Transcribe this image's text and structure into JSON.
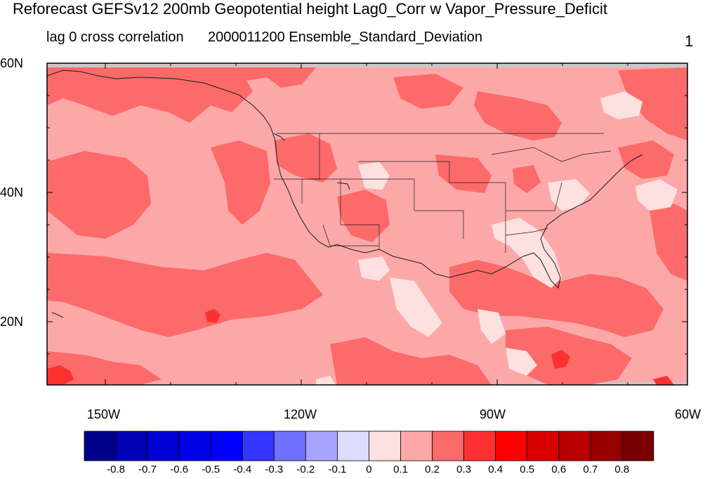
{
  "header": {
    "title": "Reforecast GEFSv12 200mb Geopotential height Lag0_Corr w Vapor_Pressure_Deficit",
    "subtitle_left": "lag 0 cross correlation",
    "subtitle_right": "2000011200 Ensemble_Standard_Deviation",
    "corner": "1"
  },
  "map": {
    "lat_labels": [
      "60N",
      "40N",
      "20N"
    ],
    "lon_labels": [
      "150W",
      "120W",
      "90W",
      "60W"
    ],
    "colors": {
      "base_fill": "#fda8a8",
      "mid_fill": "#fd6a6a",
      "high_fill": "#fd3030",
      "low_fill": "#fde0e0",
      "missing": "#c8c8c8",
      "coast": "#1a1a1a"
    }
  },
  "colorbar": {
    "colors": [
      "#00008a",
      "#0000b4",
      "#0000d4",
      "#0000e8",
      "#0000ff",
      "#3535ff",
      "#7070ff",
      "#a5a5ff",
      "#dcdcff",
      "#fde0e0",
      "#fda8a8",
      "#fd6a6a",
      "#fd3030",
      "#fd0000",
      "#d80000",
      "#b80000",
      "#980000",
      "#780000"
    ],
    "labels": [
      "-0.8",
      "-0.7",
      "-0.6",
      "-0.5",
      "-0.4",
      "-0.3",
      "-0.2",
      "-0.1",
      "0",
      "0.1",
      "0.2",
      "0.3",
      "0.4",
      "0.5",
      "0.6",
      "0.7",
      "0.8"
    ]
  }
}
